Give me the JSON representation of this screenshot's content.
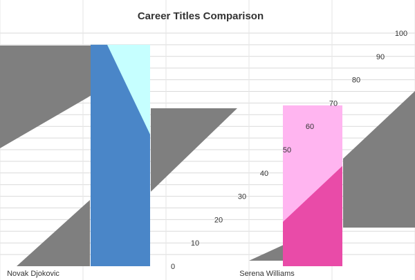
{
  "chart_data": {
    "type": "bar",
    "title": "Career Titles Comparison",
    "categories": [
      "Novak Djokovic",
      "Serena Williams"
    ],
    "values": [
      95,
      69
    ],
    "ylim": [
      0,
      100
    ],
    "yticks": [
      0,
      10,
      20,
      30,
      40,
      50,
      60,
      70,
      80,
      90,
      100
    ],
    "grid": true,
    "legend": "none",
    "colors": {
      "bars": [
        "#4a86c8",
        "#e94ba8"
      ],
      "bar_highlights": [
        "#c6ffff",
        "#ffb5f0"
      ],
      "diagonal_band": "#7f7f7f",
      "ytick_label_colors": [
        "#333333",
        "#333333",
        "#333333",
        "#333333",
        "#333333",
        "#333333",
        "#c2298c",
        "#333333",
        "#333333",
        "#333333",
        "#333333"
      ]
    }
  }
}
